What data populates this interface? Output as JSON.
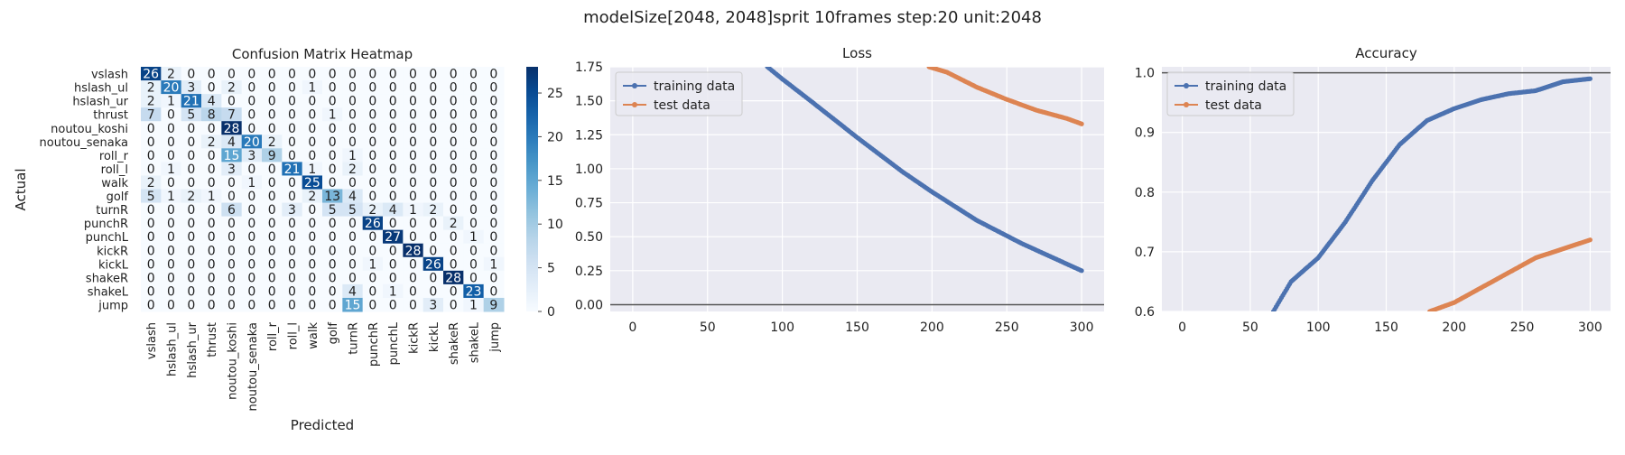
{
  "figure": {
    "suptitle": "modelSize[2048, 2048]sprit 10frames step:20 unit:2048"
  },
  "colors": {
    "axes_bg": "#eaeaf2",
    "grid": "#ffffff",
    "train": "#4c72b0",
    "test": "#dd8452",
    "hline": "#555555"
  },
  "chart_data": [
    {
      "type": "heatmap",
      "title": "Confusion Matrix Heatmap",
      "xlabel": "Predicted",
      "ylabel": "Actual",
      "labels": [
        "vslash",
        "hslash_ul",
        "hslash_ur",
        "thrust",
        "noutou_koshi",
        "noutou_senaka",
        "roll_r",
        "roll_l",
        "walk",
        "golf",
        "turnR",
        "punchR",
        "punchL",
        "kickR",
        "kickL",
        "shakeR",
        "shakeL",
        "jump"
      ],
      "matrix": [
        [
          26,
          2,
          0,
          0,
          0,
          0,
          0,
          0,
          0,
          0,
          0,
          0,
          0,
          0,
          0,
          0,
          0,
          0
        ],
        [
          2,
          20,
          3,
          0,
          2,
          0,
          0,
          0,
          1,
          0,
          0,
          0,
          0,
          0,
          0,
          0,
          0,
          0
        ],
        [
          2,
          1,
          21,
          4,
          0,
          0,
          0,
          0,
          0,
          0,
          0,
          0,
          0,
          0,
          0,
          0,
          0,
          0
        ],
        [
          7,
          0,
          5,
          8,
          7,
          0,
          0,
          0,
          0,
          1,
          0,
          0,
          0,
          0,
          0,
          0,
          0,
          0
        ],
        [
          0,
          0,
          0,
          0,
          28,
          0,
          0,
          0,
          0,
          0,
          0,
          0,
          0,
          0,
          0,
          0,
          0,
          0
        ],
        [
          0,
          0,
          0,
          2,
          4,
          20,
          2,
          0,
          0,
          0,
          0,
          0,
          0,
          0,
          0,
          0,
          0,
          0
        ],
        [
          0,
          0,
          0,
          0,
          15,
          3,
          9,
          0,
          0,
          0,
          1,
          0,
          0,
          0,
          0,
          0,
          0,
          0
        ],
        [
          0,
          1,
          0,
          0,
          3,
          0,
          0,
          21,
          1,
          0,
          2,
          0,
          0,
          0,
          0,
          0,
          0,
          0
        ],
        [
          2,
          0,
          0,
          0,
          0,
          1,
          0,
          0,
          25,
          0,
          0,
          0,
          0,
          0,
          0,
          0,
          0,
          0
        ],
        [
          5,
          1,
          2,
          1,
          0,
          0,
          0,
          0,
          2,
          13,
          4,
          0,
          0,
          0,
          0,
          0,
          0,
          0
        ],
        [
          0,
          0,
          0,
          0,
          6,
          0,
          0,
          3,
          0,
          5,
          5,
          2,
          4,
          1,
          2,
          0,
          0,
          0
        ],
        [
          0,
          0,
          0,
          0,
          0,
          0,
          0,
          0,
          0,
          0,
          0,
          26,
          0,
          0,
          0,
          2,
          0,
          0
        ],
        [
          0,
          0,
          0,
          0,
          0,
          0,
          0,
          0,
          0,
          0,
          0,
          0,
          27,
          0,
          0,
          0,
          1,
          0
        ],
        [
          0,
          0,
          0,
          0,
          0,
          0,
          0,
          0,
          0,
          0,
          0,
          0,
          0,
          28,
          0,
          0,
          0,
          0
        ],
        [
          0,
          0,
          0,
          0,
          0,
          0,
          0,
          0,
          0,
          0,
          0,
          1,
          0,
          0,
          26,
          0,
          0,
          1
        ],
        [
          0,
          0,
          0,
          0,
          0,
          0,
          0,
          0,
          0,
          0,
          0,
          0,
          0,
          0,
          0,
          28,
          0,
          0
        ],
        [
          0,
          0,
          0,
          0,
          0,
          0,
          0,
          0,
          0,
          0,
          4,
          0,
          1,
          0,
          0,
          0,
          23,
          0
        ],
        [
          0,
          0,
          0,
          0,
          0,
          0,
          0,
          0,
          0,
          0,
          15,
          0,
          0,
          0,
          3,
          0,
          1,
          9
        ]
      ],
      "colorbar": {
        "min": 0,
        "max": 28,
        "ticks": [
          0,
          5,
          10,
          15,
          20,
          25
        ]
      }
    },
    {
      "type": "line",
      "title": "Loss",
      "xlim": [
        -15,
        315
      ],
      "ylim": [
        -0.05,
        1.75
      ],
      "xticks": [
        0,
        50,
        100,
        150,
        200,
        250,
        300
      ],
      "yticks": [
        "0.00",
        "0.25",
        "0.50",
        "0.75",
        "1.00",
        "1.25",
        "1.50",
        "1.75"
      ],
      "legend": "top-left",
      "hline": 0,
      "series": [
        {
          "name": "training data",
          "color_key": "train",
          "points": [
            [
              90,
              1.75
            ],
            [
              100,
              1.66
            ],
            [
              120,
              1.49
            ],
            [
              150,
              1.23
            ],
            [
              180,
              0.98
            ],
            [
              200,
              0.83
            ],
            [
              230,
              0.62
            ],
            [
              260,
              0.45
            ],
            [
              280,
              0.35
            ],
            [
              300,
              0.25
            ]
          ]
        },
        {
          "name": "test data",
          "color_key": "test",
          "points": [
            [
              198,
              1.75
            ],
            [
              210,
              1.71
            ],
            [
              230,
              1.6
            ],
            [
              250,
              1.51
            ],
            [
              270,
              1.43
            ],
            [
              290,
              1.37
            ],
            [
              300,
              1.33
            ]
          ]
        }
      ]
    },
    {
      "type": "line",
      "title": "Accuracy",
      "xlim": [
        -15,
        315
      ],
      "ylim": [
        0.6,
        1.01
      ],
      "xticks": [
        0,
        50,
        100,
        150,
        200,
        250,
        300
      ],
      "yticks": [
        "0.6",
        "0.7",
        "0.8",
        "0.9",
        "1.0"
      ],
      "legend": "top-left",
      "hline": 1.0,
      "series": [
        {
          "name": "training data",
          "color_key": "train",
          "points": [
            [
              67,
              0.6
            ],
            [
              80,
              0.65
            ],
            [
              100,
              0.69
            ],
            [
              120,
              0.75
            ],
            [
              140,
              0.82
            ],
            [
              160,
              0.88
            ],
            [
              180,
              0.92
            ],
            [
              200,
              0.94
            ],
            [
              220,
              0.955
            ],
            [
              240,
              0.965
            ],
            [
              260,
              0.97
            ],
            [
              280,
              0.985
            ],
            [
              300,
              0.99
            ]
          ]
        },
        {
          "name": "test data",
          "color_key": "test",
          "points": [
            [
              182,
              0.6
            ],
            [
              200,
              0.615
            ],
            [
              220,
              0.64
            ],
            [
              240,
              0.665
            ],
            [
              260,
              0.69
            ],
            [
              280,
              0.705
            ],
            [
              300,
              0.72
            ]
          ]
        }
      ]
    }
  ]
}
